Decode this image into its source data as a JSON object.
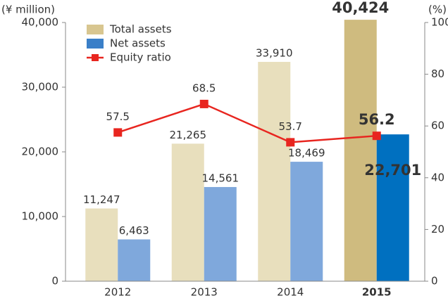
{
  "chart_data": {
    "type": "bar",
    "y_label": "(¥ million)",
    "y2_label": "(%)",
    "categories": [
      "2012",
      "2013",
      "2014",
      "2015"
    ],
    "series": [
      {
        "name": "Total assets",
        "color": "#d8c690",
        "point_colors": [
          "#e8dfbd",
          "#e8dfbd",
          "#e8dfbd",
          "#cfbb7f"
        ],
        "values": [
          11247,
          21265,
          33910,
          40424
        ],
        "value_labels": [
          "11,247",
          "21,265",
          "33,910",
          "40,424"
        ]
      },
      {
        "name": "Net assets",
        "color": "#3a7fc8",
        "point_colors": [
          "#7fa8dc",
          "#7fa8dc",
          "#7fa8dc",
          "#0070c0"
        ],
        "values": [
          6463,
          14561,
          18469,
          22701
        ],
        "value_labels": [
          "6,463",
          "14,561",
          "18,469",
          "22,701"
        ]
      },
      {
        "name": "Equity ratio",
        "type": "line",
        "axis": "y2",
        "color": "#e8251f",
        "values": [
          57.5,
          68.5,
          53.7,
          56.2
        ]
      }
    ],
    "ylim": [
      0,
      40000
    ],
    "yticks": [
      0,
      {
        "value": 10000,
        "label": "10,000"
      },
      {
        "value": 20000,
        "label": "20,000"
      },
      {
        "value": 30000,
        "label": "30,000"
      },
      {
        "value": 40000,
        "label": "40,000"
      }
    ],
    "y2lim": [
      0,
      100
    ],
    "y2ticks": [
      0,
      20,
      40,
      60,
      80,
      100
    ]
  }
}
